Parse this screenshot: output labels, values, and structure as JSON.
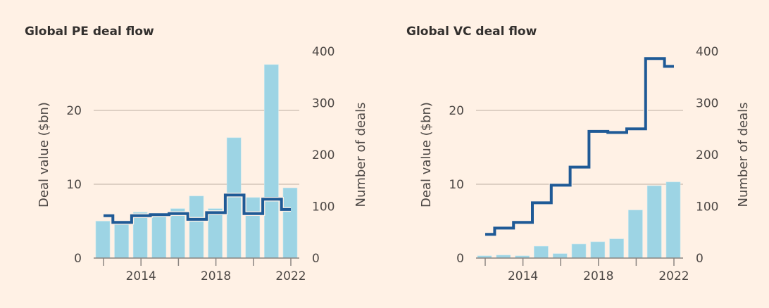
{
  "colors": {
    "background": "#fff1e5",
    "bars": "#9dd4e4",
    "line": "#1f5a96",
    "grid": "#c9bcb0",
    "axis": "#8a8480"
  },
  "chart_data": [
    {
      "type": "bar+line",
      "title": "Global PE deal flow",
      "x": [
        2012,
        2013,
        2014,
        2015,
        2016,
        2017,
        2018,
        2019,
        2020,
        2021,
        2022
      ],
      "xticks": [
        2012,
        2014,
        2016,
        2018,
        2020,
        2022
      ],
      "xtick_labels": [
        "2014",
        "2018",
        "2022"
      ],
      "series": [
        {
          "name": "Deal value ($bn)",
          "kind": "bar",
          "axis": "left",
          "values": [
            5.0,
            4.8,
            6.2,
            5.9,
            6.7,
            8.4,
            6.7,
            16.3,
            8.2,
            26.2,
            9.5
          ]
        },
        {
          "name": "Number of deals",
          "kind": "step-line",
          "axis": "right",
          "values": [
            82,
            69,
            82,
            84,
            86,
            75,
            88,
            122,
            86,
            114,
            94
          ]
        }
      ],
      "ylabel": "Deal value ($bn)",
      "ylim": [
        0,
        28
      ],
      "yticks": [
        "0",
        "10",
        "20"
      ],
      "y2label": "Number of deals",
      "y2lim": [
        0,
        400
      ],
      "y2ticks": [
        "0",
        "100",
        "200",
        "300",
        "400"
      ],
      "grid": true
    },
    {
      "type": "bar+line",
      "title": "Global VC deal flow",
      "x": [
        2012,
        2013,
        2014,
        2015,
        2016,
        2017,
        2018,
        2019,
        2020,
        2021,
        2022
      ],
      "xticks": [
        2012,
        2014,
        2016,
        2018,
        2020,
        2022
      ],
      "xtick_labels": [
        "2014",
        "2018",
        "2022"
      ],
      "series": [
        {
          "name": "Deal value ($bn)",
          "kind": "bar",
          "axis": "left",
          "values": [
            0.3,
            0.4,
            0.3,
            1.6,
            0.6,
            1.9,
            2.2,
            2.6,
            6.5,
            9.8,
            10.3
          ]
        },
        {
          "name": "Number of deals",
          "kind": "step-line",
          "axis": "right",
          "values": [
            46,
            58,
            69,
            107,
            141,
            176,
            245,
            243,
            250,
            386,
            371
          ]
        }
      ],
      "ylabel": "Deal value ($bn)",
      "ylim": [
        0,
        28
      ],
      "yticks": [
        "0",
        "10",
        "20"
      ],
      "y2label": "Number of deals",
      "y2lim": [
        0,
        400
      ],
      "y2ticks": [
        "0",
        "100",
        "200",
        "300",
        "400"
      ],
      "grid": true
    }
  ]
}
